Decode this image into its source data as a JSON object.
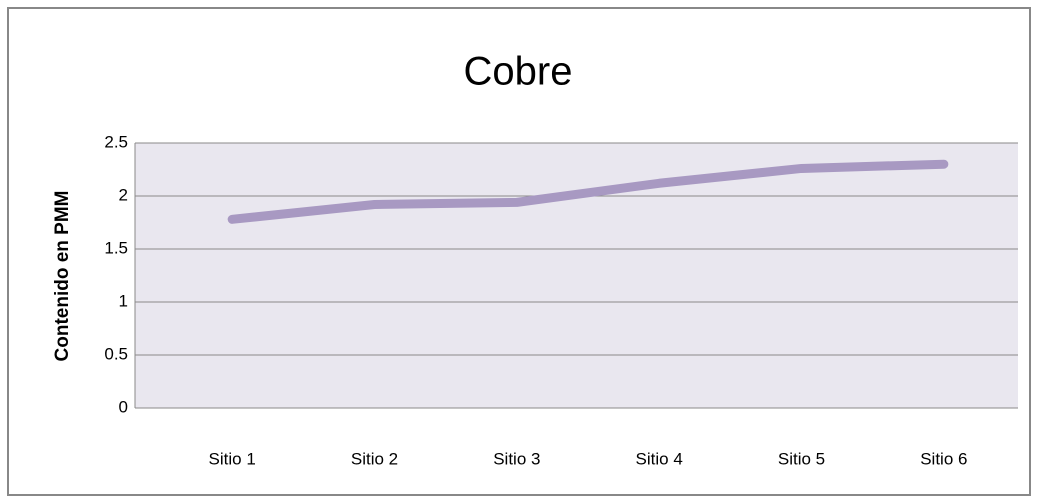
{
  "chart_data": {
    "type": "line",
    "title": "Cobre",
    "y_label": "Contenido en PMM",
    "categories": [
      "Sitio 1",
      "Sitio 2",
      "Sitio 3",
      "Sitio 4",
      "Sitio 5",
      "Sitio 6"
    ],
    "series": [
      {
        "name": "Cobre",
        "color": "#a899c2",
        "values": [
          1.78,
          1.92,
          1.94,
          2.12,
          2.26,
          2.3
        ]
      }
    ],
    "ylim": [
      0,
      2.5
    ],
    "yticks": [
      0,
      0.5,
      1,
      1.5,
      2,
      2.5
    ],
    "grid": true
  }
}
